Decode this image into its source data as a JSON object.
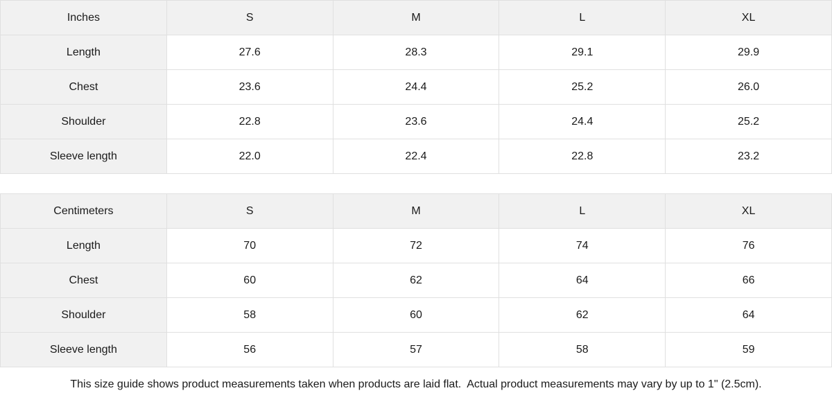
{
  "colors": {
    "header_bg": "#f1f1f1",
    "border": "#e0e0e0",
    "text": "#1a1a1a",
    "background": "#ffffff"
  },
  "tables": [
    {
      "unit_label": "Inches",
      "sizes": [
        "S",
        "M",
        "L",
        "XL"
      ],
      "rows": [
        {
          "label": "Length",
          "values": [
            "27.6",
            "28.3",
            "29.1",
            "29.9"
          ]
        },
        {
          "label": "Chest",
          "values": [
            "23.6",
            "24.4",
            "25.2",
            "26.0"
          ]
        },
        {
          "label": "Shoulder",
          "values": [
            "22.8",
            "23.6",
            "24.4",
            "25.2"
          ]
        },
        {
          "label": "Sleeve length",
          "values": [
            "22.0",
            "22.4",
            "22.8",
            "23.2"
          ]
        }
      ]
    },
    {
      "unit_label": "Centimeters",
      "sizes": [
        "S",
        "M",
        "L",
        "XL"
      ],
      "rows": [
        {
          "label": "Length",
          "values": [
            "70",
            "72",
            "74",
            "76"
          ]
        },
        {
          "label": "Chest",
          "values": [
            "60",
            "62",
            "64",
            "66"
          ]
        },
        {
          "label": "Shoulder",
          "values": [
            "58",
            "60",
            "62",
            "64"
          ]
        },
        {
          "label": "Sleeve length",
          "values": [
            "56",
            "57",
            "58",
            "59"
          ]
        }
      ]
    }
  ],
  "footer": {
    "note": "This size guide shows product measurements taken when products are laid flat.  Actual product measurements may vary by up to 1\" (2.5cm)."
  }
}
